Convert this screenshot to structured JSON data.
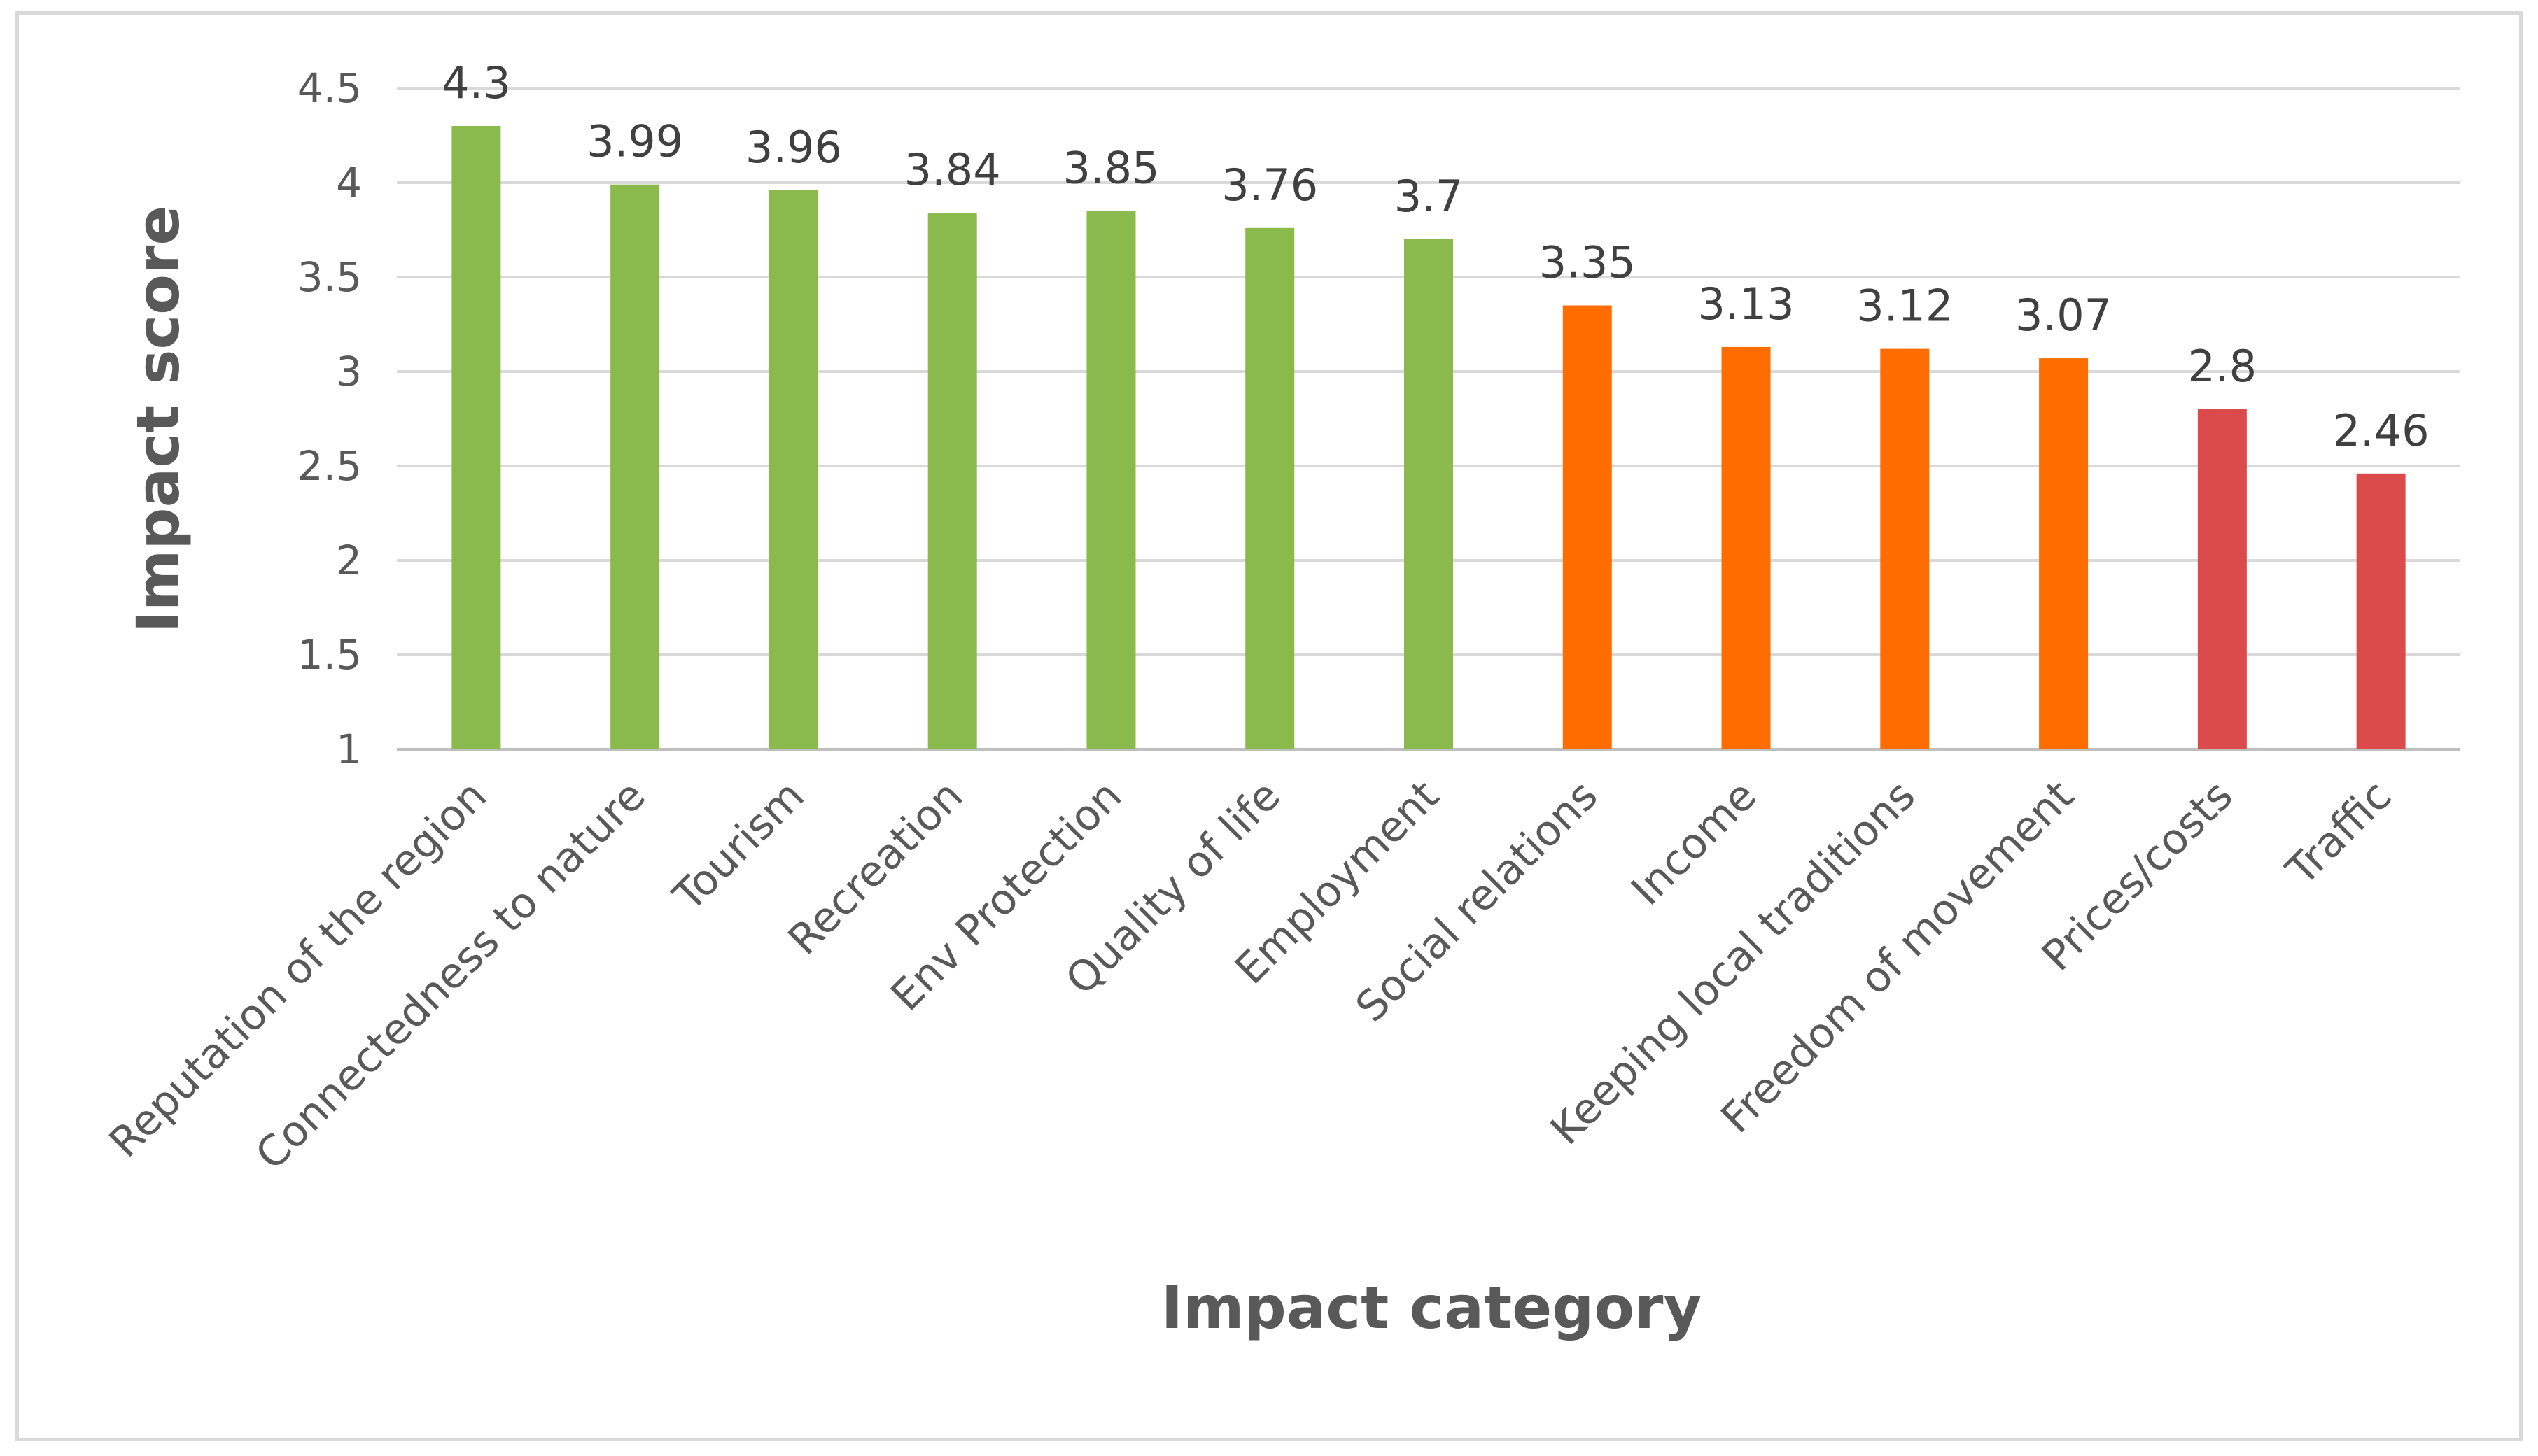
{
  "chart_data": {
    "type": "bar",
    "title": "",
    "xlabel": "Impact category",
    "ylabel": "Impact score",
    "ylim": [
      1,
      4.5
    ],
    "yticks": [
      "1",
      "1.5",
      "2",
      "2.5",
      "3",
      "3.5",
      "4",
      "4.5"
    ],
    "ytick_values": [
      1,
      1.5,
      2,
      2.5,
      3,
      3.5,
      4,
      4.5
    ],
    "grid": true,
    "legend": "none",
    "categories": [
      "Reputation of the region",
      "Connectedness to nature",
      "Tourism",
      "Recreation",
      "Env Protection",
      "Quality of life",
      "Employment",
      "Social relations",
      "Income",
      "Keeping local traditions",
      "Freedom of movement",
      "Prices/costs",
      "Traffic"
    ],
    "values": [
      4.3,
      3.99,
      3.96,
      3.84,
      3.85,
      3.76,
      3.7,
      3.35,
      3.13,
      3.12,
      3.07,
      2.8,
      2.46
    ],
    "data_labels": [
      "4.3",
      "3.99",
      "3.96",
      "3.84",
      "3.85",
      "3.76",
      "3.7",
      "3.35",
      "3.13",
      "3.12",
      "3.07",
      "2.8",
      "2.46"
    ],
    "bar_colors": [
      "#8ab94c",
      "#8ab94c",
      "#8ab94c",
      "#8ab94c",
      "#8ab94c",
      "#8ab94c",
      "#8ab94c",
      "#ff6d00",
      "#ff6d00",
      "#ff6d00",
      "#ff6d00",
      "#db4b4b",
      "#db4b4b"
    ]
  }
}
